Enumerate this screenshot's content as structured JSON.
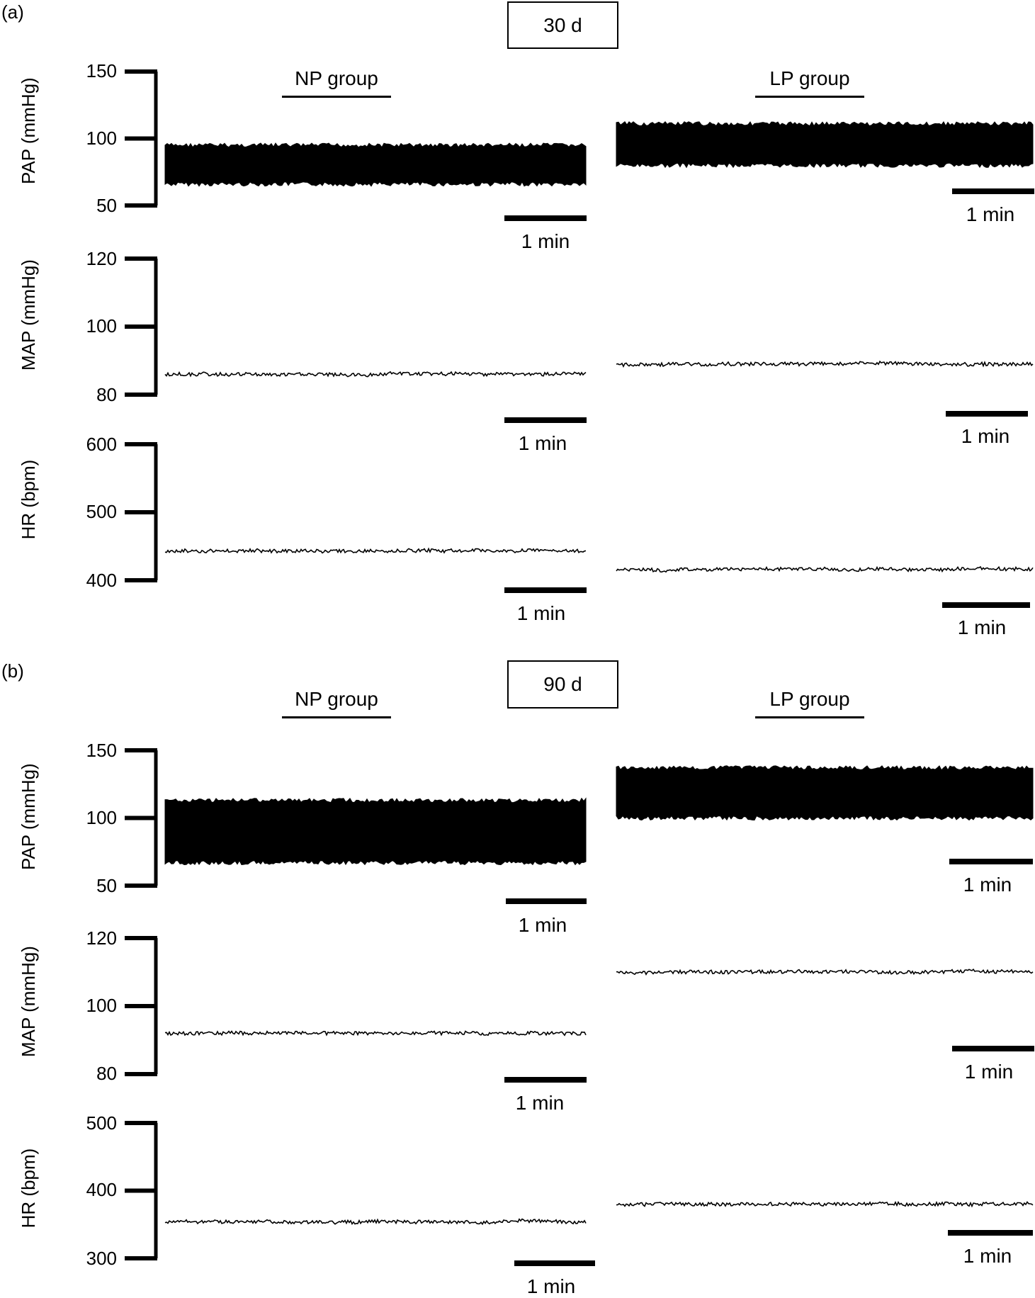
{
  "figure": {
    "panels": [
      {
        "label": "(a)",
        "day": "30 d",
        "groups": [
          "NP group",
          "LP group"
        ]
      },
      {
        "label": "(b)",
        "day": "90 d",
        "groups": [
          "NP group",
          "LP group"
        ]
      }
    ],
    "scale_label": "1 min"
  },
  "chart_data": [
    {
      "type": "line",
      "panel": "(a)",
      "title": "30 d",
      "ylabel": "PAP (mmHg)",
      "yticks": [
        150,
        100,
        50
      ],
      "ylim": [
        50,
        150
      ],
      "series": [
        {
          "name": "NP group",
          "band": true,
          "low": 66,
          "high": 95
        },
        {
          "name": "LP group",
          "band": true,
          "low": 80,
          "high": 111
        }
      ],
      "scale_bar": "1 min"
    },
    {
      "type": "line",
      "panel": "(a)",
      "title": "30 d",
      "ylabel": "MAP (mmHg)",
      "yticks": [
        120,
        100,
        80
      ],
      "ylim": [
        80,
        120
      ],
      "series": [
        {
          "name": "NP group",
          "mean": 86
        },
        {
          "name": "LP group",
          "mean": 89
        }
      ],
      "scale_bar": "1 min"
    },
    {
      "type": "line",
      "panel": "(a)",
      "title": "30 d",
      "ylabel": "HR (bpm)",
      "yticks": [
        600,
        500,
        400
      ],
      "ylim": [
        400,
        600
      ],
      "series": [
        {
          "name": "NP group",
          "mean": 443
        },
        {
          "name": "LP group",
          "mean": 416
        }
      ],
      "scale_bar": "1 min"
    },
    {
      "type": "line",
      "panel": "(b)",
      "title": "90 d",
      "ylabel": "PAP (mmHg)",
      "yticks": [
        150,
        100,
        50
      ],
      "ylim": [
        50,
        150
      ],
      "series": [
        {
          "name": "NP group",
          "band": true,
          "low": 67,
          "high": 113
        },
        {
          "name": "LP group",
          "band": true,
          "low": 100,
          "high": 137
        }
      ],
      "scale_bar": "1 min"
    },
    {
      "type": "line",
      "panel": "(b)",
      "title": "90 d",
      "ylabel": "MAP (mmHg)",
      "yticks": [
        120,
        100,
        80
      ],
      "ylim": [
        80,
        120
      ],
      "series": [
        {
          "name": "NP group",
          "mean": 92
        },
        {
          "name": "LP group",
          "mean": 110
        }
      ],
      "scale_bar": "1 min"
    },
    {
      "type": "line",
      "panel": "(b)",
      "title": "90 d",
      "ylabel": "HR (bpm)",
      "yticks": [
        500,
        400,
        300
      ],
      "ylim": [
        300,
        500
      ],
      "series": [
        {
          "name": "NP group",
          "mean": 354
        },
        {
          "name": "LP group",
          "mean": 380
        }
      ],
      "scale_bar": "1 min"
    }
  ]
}
